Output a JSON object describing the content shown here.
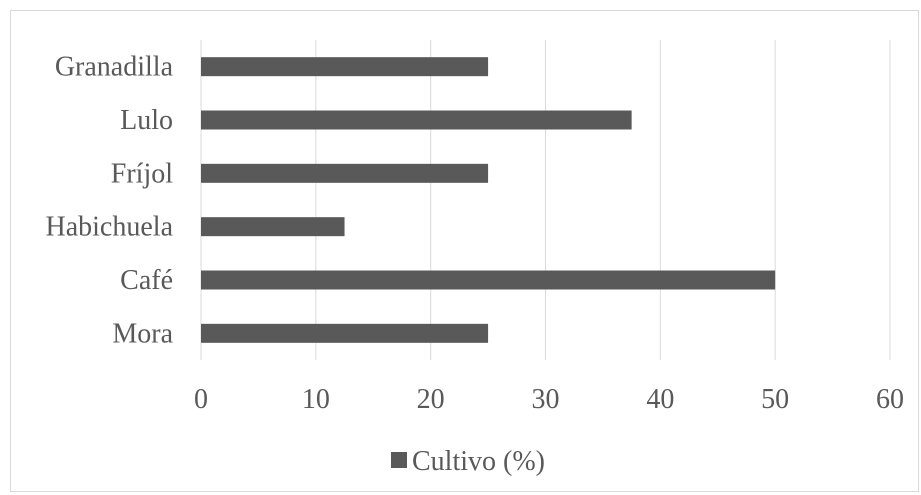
{
  "chart_data": {
    "type": "bar",
    "orientation": "horizontal",
    "categories": [
      "Granadilla",
      "Lulo",
      "Fríjol",
      "Habichuela",
      "Café",
      "Mora"
    ],
    "series": [
      {
        "name": "Cultivo (%)",
        "values": [
          25,
          37.5,
          25,
          12.5,
          50,
          25
        ],
        "color": "#595959"
      }
    ],
    "x_ticks": [
      "0",
      "10",
      "20",
      "30",
      "40",
      "50",
      "60"
    ],
    "xlim": [
      0,
      60
    ],
    "grid": "vertical",
    "legend": "bottom",
    "gridline_color": "#d9d9d9",
    "text_color": "#595959"
  }
}
